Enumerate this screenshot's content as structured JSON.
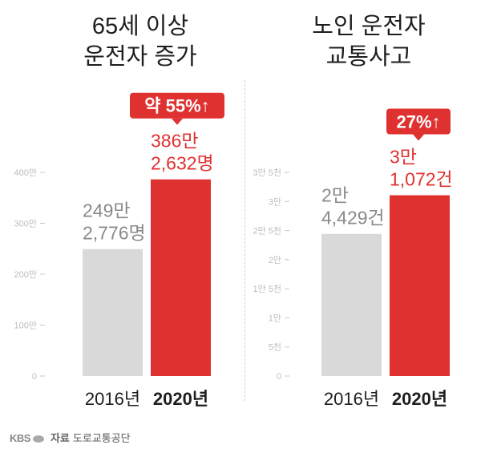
{
  "chart_data": [
    {
      "type": "bar",
      "title_lines": [
        "65세 이상",
        "운전자 증가"
      ],
      "categories": [
        "2016년",
        "2020년"
      ],
      "values": [
        2492776,
        3862632
      ],
      "value_labels": [
        [
          "249만",
          "2,776명"
        ],
        [
          "386만",
          "2,632명"
        ]
      ],
      "yticks": [
        0,
        1000000,
        2000000,
        3000000,
        4000000
      ],
      "ytick_labels": [
        "0",
        "100만",
        "200만",
        "300만",
        "400만"
      ],
      "ylim": [
        0,
        4000000
      ],
      "annotation": "약 55%↑",
      "colors": [
        "#d9d9d9",
        "#e03131"
      ]
    },
    {
      "type": "bar",
      "title_lines": [
        "노인 운전자",
        "교통사고"
      ],
      "categories": [
        "2016년",
        "2020년"
      ],
      "values": [
        24429,
        31072
      ],
      "value_labels": [
        [
          "2만",
          "4,429건"
        ],
        [
          "3만",
          "1,072건"
        ]
      ],
      "yticks": [
        0,
        5000,
        10000,
        15000,
        20000,
        25000,
        30000,
        35000
      ],
      "ytick_labels": [
        "0",
        "5천",
        "1만",
        "1만 5천",
        "2만",
        "2만 5천",
        "3만",
        "3만 5천"
      ],
      "ylim": [
        0,
        35000
      ],
      "annotation": "27%↑",
      "colors": [
        "#d9d9d9",
        "#e03131"
      ]
    }
  ],
  "footer": {
    "logo": "KBS",
    "source_label": "자료",
    "source": "도로교통공단"
  }
}
